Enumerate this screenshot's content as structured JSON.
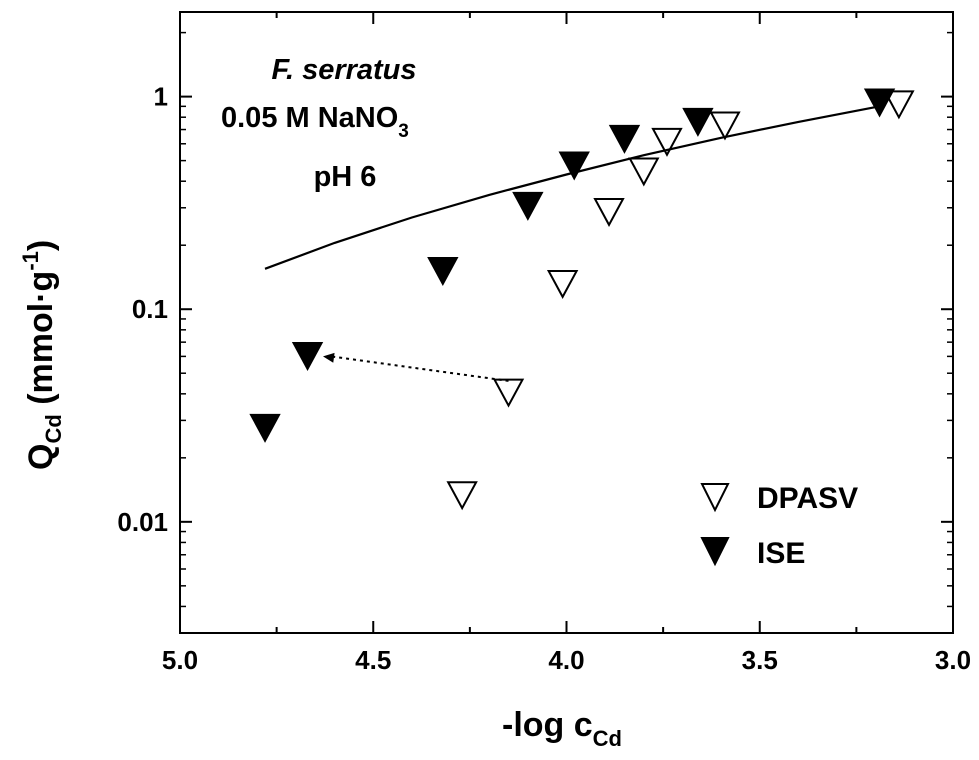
{
  "chart_data": {
    "type": "scatter",
    "x_axis": {
      "label_main": "-log c",
      "label_sub": "Cd",
      "lim": [
        5.0,
        3.0
      ],
      "ticks": [
        5.0,
        4.5,
        4.0,
        3.5,
        3.0
      ],
      "tick_labels": [
        "5.0",
        "4.5",
        "4.0",
        "3.5",
        "3.0"
      ],
      "reversed": true
    },
    "y_axis": {
      "label_main": "Q",
      "label_sub": "Cd",
      "label_unit": " (mmol·g",
      "label_exp": "-1",
      "label_close": ")",
      "scale": "log",
      "lim": [
        0.003,
        2.5
      ],
      "ticks": [
        0.01,
        0.1,
        1
      ],
      "tick_labels": [
        "0.01",
        "0.1",
        "1"
      ]
    },
    "annotation": {
      "species": "F. serratus",
      "medium_main": "0.05 M NaNO",
      "medium_sub": "3",
      "ph": "pH 6"
    },
    "legend": {
      "placement": "bottom-right",
      "entries": [
        {
          "label": "DPASV",
          "marker": "open-down-triangle"
        },
        {
          "label": "ISE",
          "marker": "filled-down-triangle"
        }
      ]
    },
    "series": [
      {
        "name": "DPASV",
        "marker": "open-down-triangle",
        "points": [
          {
            "x": 4.27,
            "y": 0.0135
          },
          {
            "x": 4.15,
            "y": 0.041
          },
          {
            "x": 4.01,
            "y": 0.133
          },
          {
            "x": 3.89,
            "y": 0.29
          },
          {
            "x": 3.8,
            "y": 0.45
          },
          {
            "x": 3.74,
            "y": 0.62
          },
          {
            "x": 3.59,
            "y": 0.74
          },
          {
            "x": 3.14,
            "y": 0.93
          }
        ]
      },
      {
        "name": "ISE",
        "marker": "filled-down-triangle",
        "points": [
          {
            "x": 4.78,
            "y": 0.028
          },
          {
            "x": 4.67,
            "y": 0.061
          },
          {
            "x": 4.32,
            "y": 0.153
          },
          {
            "x": 4.1,
            "y": 0.31
          },
          {
            "x": 3.98,
            "y": 0.48
          },
          {
            "x": 3.85,
            "y": 0.64
          },
          {
            "x": 3.66,
            "y": 0.77
          },
          {
            "x": 3.19,
            "y": 0.95
          }
        ]
      },
      {
        "marker": "solid-line",
        "points": [
          {
            "x": 4.78,
            "y": 0.155
          },
          {
            "x": 4.6,
            "y": 0.205
          },
          {
            "x": 4.4,
            "y": 0.27
          },
          {
            "x": 4.2,
            "y": 0.345
          },
          {
            "x": 4.0,
            "y": 0.43
          },
          {
            "x": 3.8,
            "y": 0.53
          },
          {
            "x": 3.6,
            "y": 0.64
          },
          {
            "x": 3.4,
            "y": 0.76
          },
          {
            "x": 3.19,
            "y": 0.9
          }
        ]
      }
    ],
    "arrow": {
      "style": "dotted",
      "from": {
        "x": 4.15,
        "y": 0.046
      },
      "to": {
        "x": 4.63,
        "y": 0.06
      }
    }
  }
}
